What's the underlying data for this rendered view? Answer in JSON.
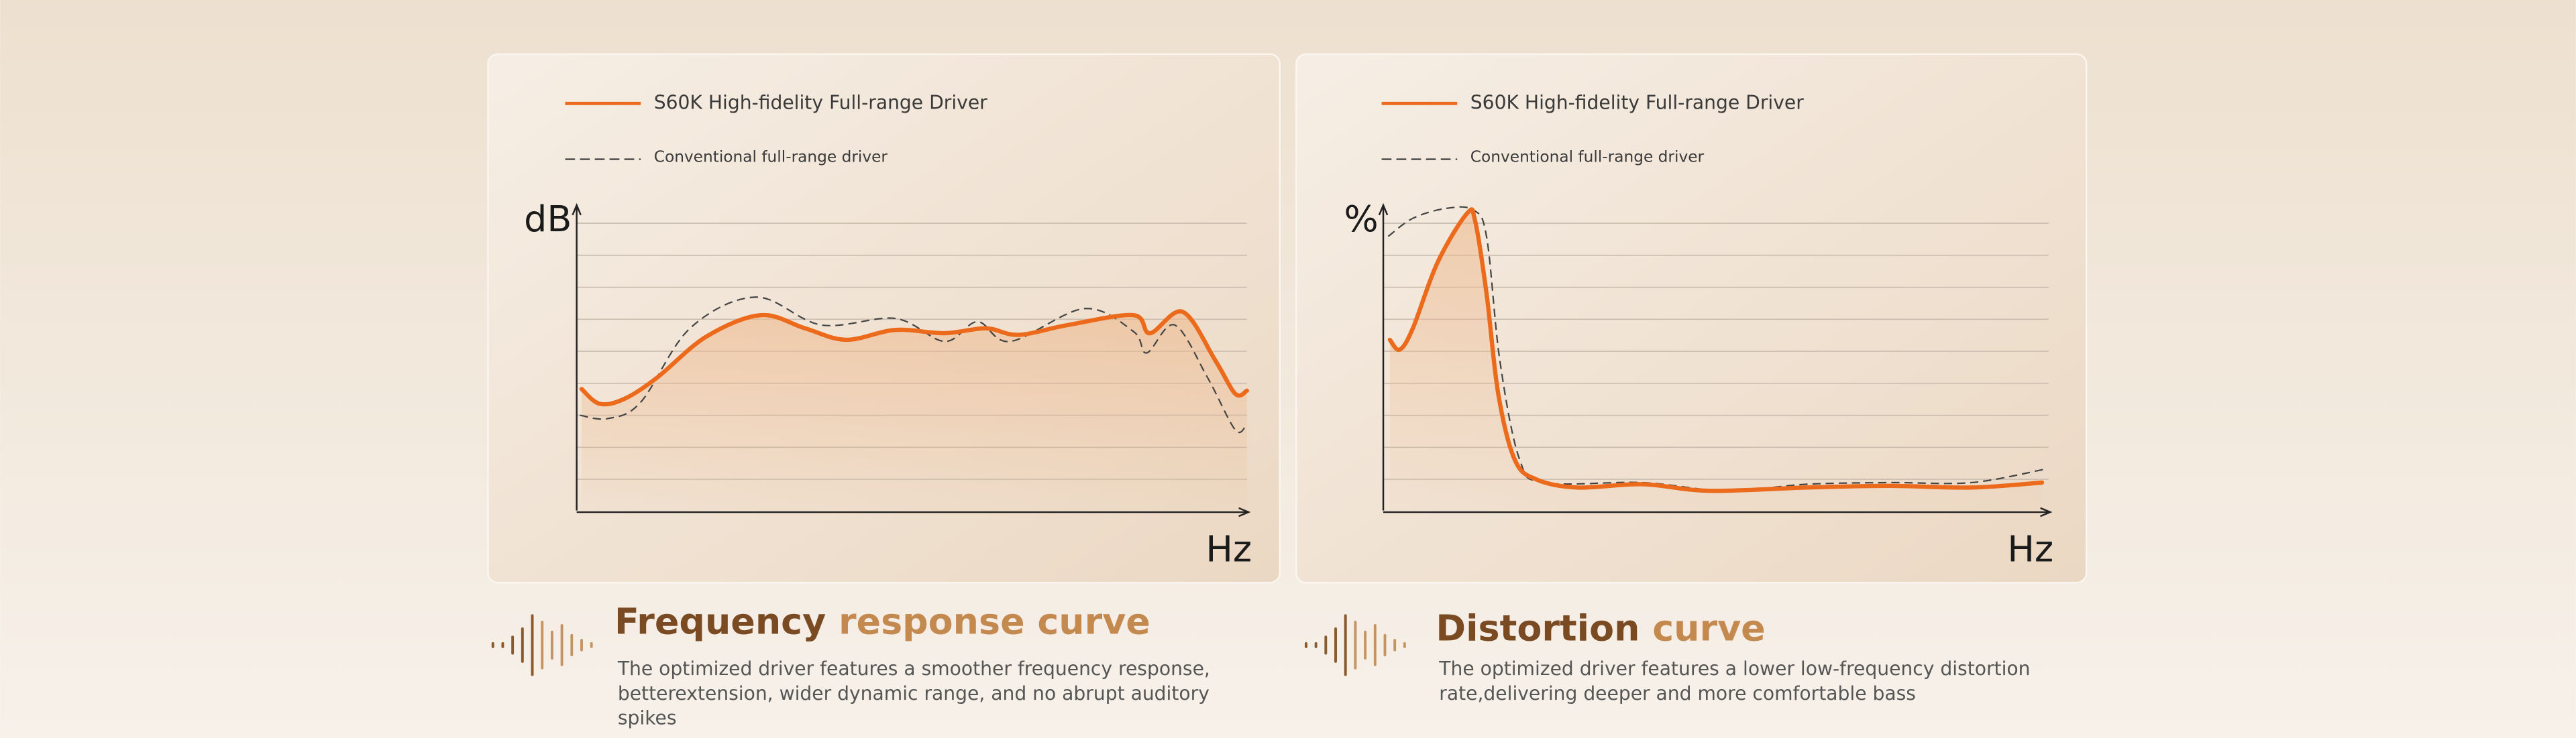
{
  "panels": [
    {
      "legend": [
        "S60K High-fidelity Full-range Driver",
        "Conventional full-range driver"
      ],
      "y_label": "dB",
      "x_label": "Hz",
      "title": [
        "Frequency",
        "response curve"
      ],
      "description": [
        "The optimized driver features a smoother frequency response,",
        "betterextension, wider dynamic range, and no abrupt auditory",
        "spikes"
      ]
    },
    {
      "legend": [
        "S60K High-fidelity Full-range Driver",
        "Conventional full-range driver"
      ],
      "y_label": "%",
      "x_label": "Hz",
      "title": [
        "Distortion",
        "curve"
      ],
      "description": [
        "The optimized driver features a lower low-frequency distortion",
        "rate,delivering deeper and more comfortable bass"
      ]
    }
  ]
}
